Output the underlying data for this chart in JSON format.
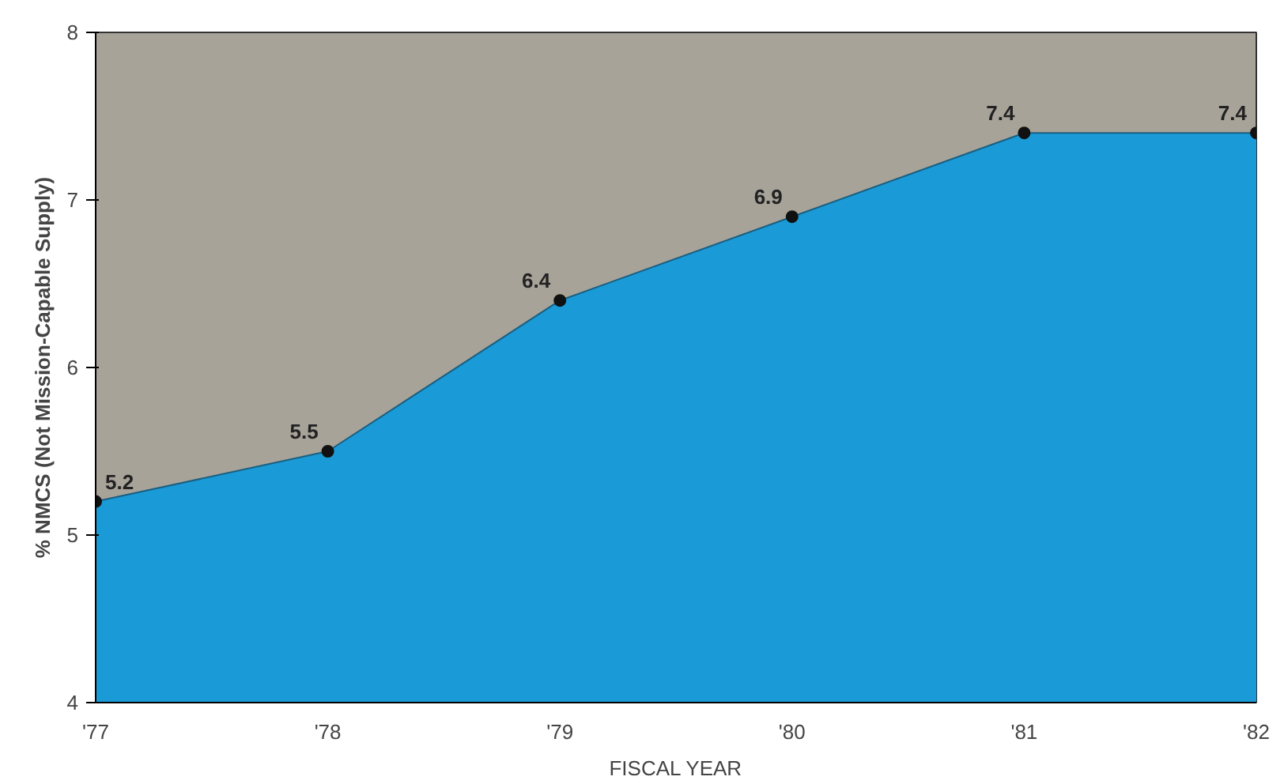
{
  "chart_data": {
    "type": "area",
    "xlabel": "FISCAL YEAR",
    "ylabel": "% NMCS (Not Mission-Capable Supply)",
    "categories": [
      "'77",
      "'78",
      "'79",
      "'80",
      "'81",
      "'82"
    ],
    "series": [
      {
        "color": "#1a9ad6",
        "values": [
          5.2,
          5.5,
          6.4,
          6.9,
          7.4,
          7.4
        ]
      }
    ],
    "ylim": [
      4,
      8
    ],
    "yticks": [
      4,
      5,
      6,
      7,
      8
    ],
    "grid": false,
    "marker": "circle",
    "data_labels": true
  }
}
